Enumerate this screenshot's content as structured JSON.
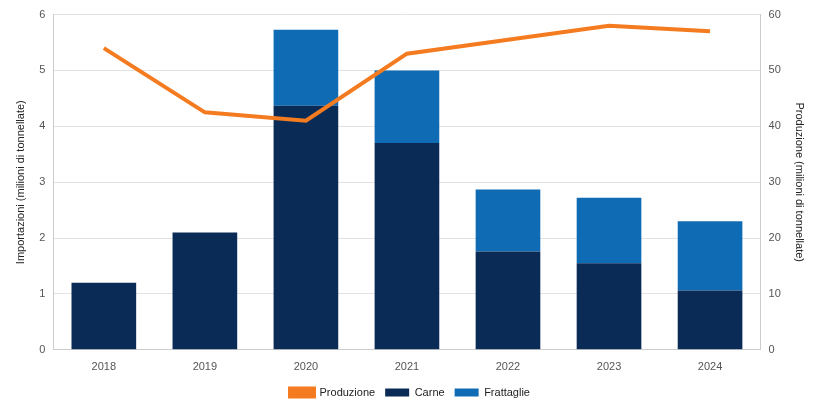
{
  "chart_data": {
    "type": "bar",
    "categories": [
      "2018",
      "2019",
      "2020",
      "2021",
      "2022",
      "2023",
      "2024"
    ],
    "y_label": "Importazioni (milioni di tonnellate)",
    "y2_label": "Produzione (milioni di tonnellate)",
    "stacked": true,
    "grid": true,
    "legend": "bottom",
    "ylim": [
      0,
      6
    ],
    "yticks": [
      0,
      1,
      2,
      3,
      4,
      5,
      6
    ],
    "y2lim": [
      0,
      60
    ],
    "y2ticks": [
      0,
      10,
      20,
      30,
      40,
      50,
      60
    ],
    "series": [
      {
        "name": "Carne",
        "type": "bar",
        "color": "#0b2b57",
        "values": [
          1.2,
          2.1,
          4.37,
          3.7,
          1.76,
          1.55,
          1.06
        ]
      },
      {
        "name": "Frattaglie",
        "type": "bar",
        "color": "#0f6cb4",
        "values": [
          0,
          0,
          1.36,
          1.3,
          1.11,
          1.17,
          1.24
        ]
      },
      {
        "name": "Produzione",
        "type": "line",
        "axis": "y2",
        "color": "#f47b20",
        "values": [
          54,
          42.5,
          41,
          53,
          55.5,
          58,
          57
        ]
      }
    ]
  }
}
